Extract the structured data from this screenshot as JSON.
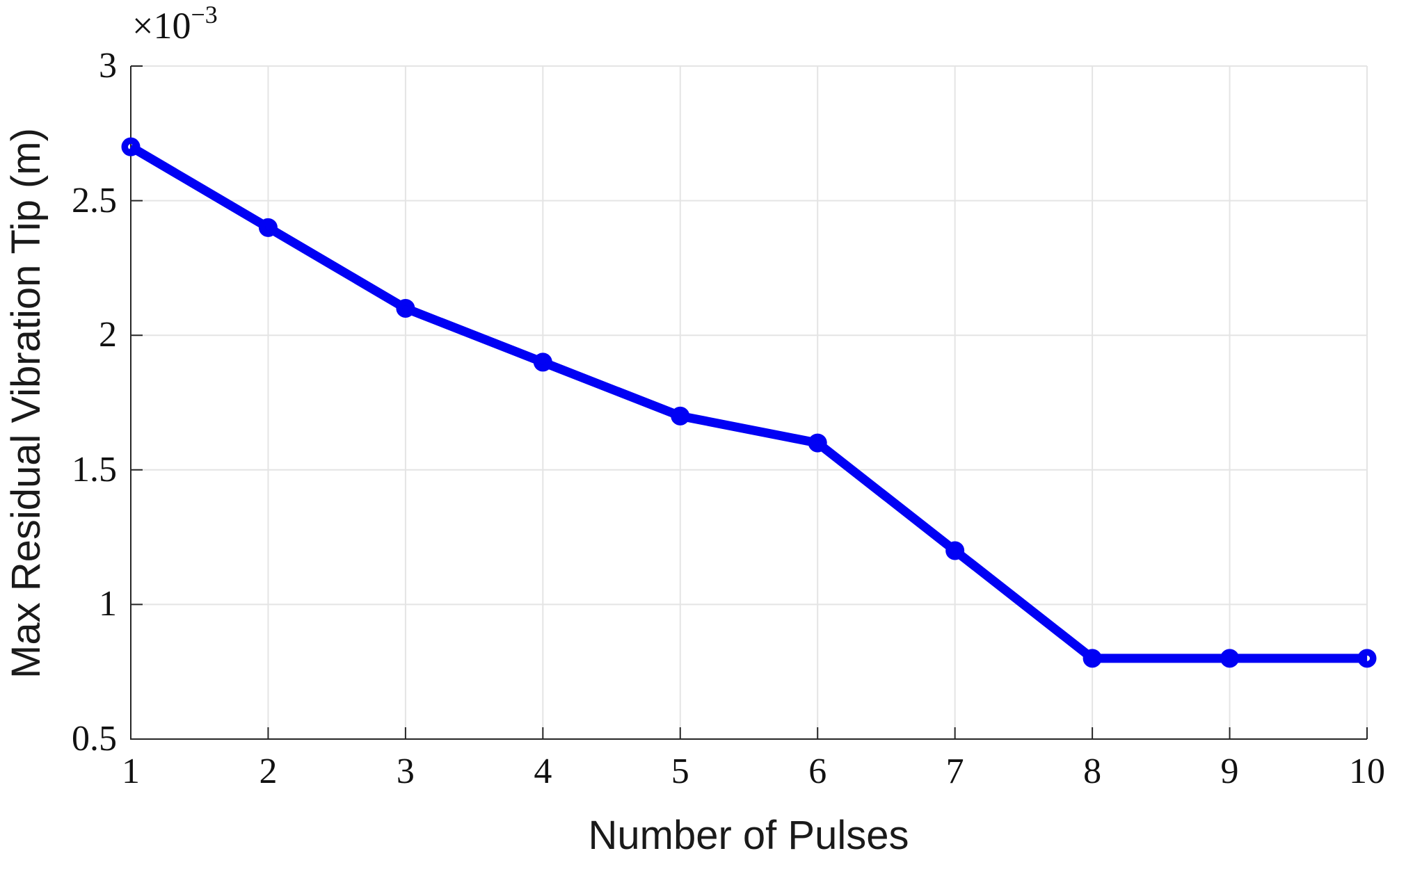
{
  "chart_data": {
    "type": "line",
    "title": "",
    "xlabel": "Number of Pulses",
    "ylabel": "Max Residual Vibration Tip (m)",
    "y_multiplier": {
      "base": "×10",
      "exp": "−3"
    },
    "x": [
      1,
      2,
      3,
      4,
      5,
      6,
      7,
      8,
      9,
      10
    ],
    "y_scaled_by_1e3": [
      2.7,
      2.4,
      2.1,
      1.9,
      1.7,
      1.6,
      1.2,
      0.8,
      0.8,
      0.8
    ],
    "y_unit_scale": 0.001,
    "xlim": [
      1,
      10
    ],
    "ylim_scaled_by_1e3": [
      0.5,
      3
    ],
    "x_tick_labels": [
      "1",
      "2",
      "3",
      "4",
      "5",
      "6",
      "7",
      "8",
      "9",
      "10"
    ],
    "y_tick_labels": [
      "0.5",
      "1",
      "1.5",
      "2",
      "2.5",
      "3"
    ],
    "grid": true,
    "legend_position": "none",
    "marker": "open-circle",
    "colors": {
      "line": "#0101F4",
      "grid": "#E4E4E4",
      "axis": "#262626",
      "tick_text": "#111111",
      "label_text": "#1A1A1A",
      "background": "#FFFFFF"
    }
  }
}
